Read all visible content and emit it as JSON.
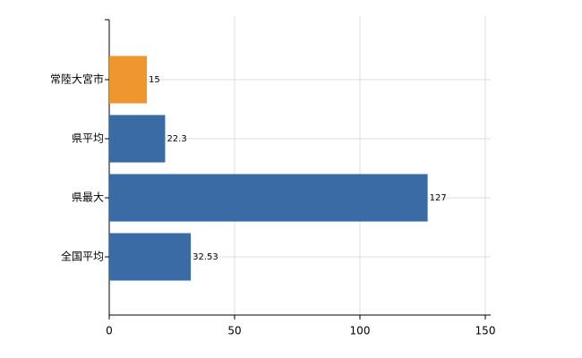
{
  "chart_data": {
    "type": "barh",
    "categories": [
      "常陸大宮市",
      "県平均",
      "県最大",
      "全国平均"
    ],
    "values": [
      15,
      22.3,
      127,
      32.53
    ],
    "colors": [
      "#f0962e",
      "#3b6ba5",
      "#3b6ba5",
      "#3b6ba5"
    ],
    "xlim": [
      0,
      150
    ],
    "xticks": [
      0,
      50,
      100,
      150
    ],
    "grid": true
  }
}
